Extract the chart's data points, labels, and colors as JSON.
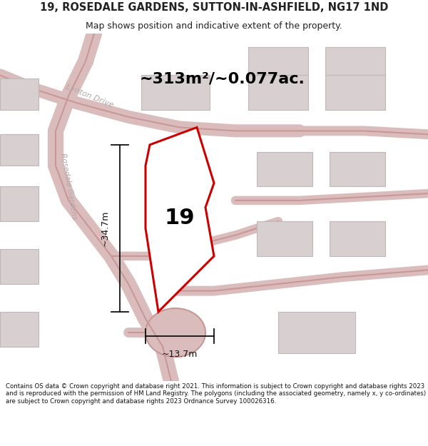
{
  "title_line1": "19, ROSEDALE GARDENS, SUTTON-IN-ASHFIELD, NG17 1ND",
  "title_line2": "Map shows position and indicative extent of the property.",
  "area_text": "~313m²/~0.077ac.",
  "label_19": "19",
  "dim_vertical": "~34.7m",
  "dim_horizontal": "~13.7m",
  "road_label1": "Lynton Drive",
  "road_label2": "Rosedale Gardens",
  "footer_text": "Contains OS data © Crown copyright and database right 2021. This information is subject to Crown copyright and database rights 2023 and is reproduced with the permission of HM Land Registry. The polygons (including the associated geometry, namely x, y co-ordinates) are subject to Crown copyright and database rights 2023 Ordnance Survey 100026316.",
  "map_bg": "#ede8e8",
  "road_fill": "#dbbcbc",
  "road_edge": "#c89898",
  "block_fill": "#d8d0d0",
  "block_edge": "#c0b8b8",
  "property_fill": "#ffffff",
  "property_edge": "#cc0000",
  "dim_color": "#111111",
  "text_color": "#222222",
  "road_text_color": "#b0a8a8",
  "footer_color": "#111111",
  "title_fontsize": 10.5,
  "subtitle_fontsize": 9,
  "area_fontsize": 16,
  "label_fontsize": 22,
  "dim_fontsize": 9,
  "road_fontsize": 8,
  "footer_fontsize": 6.2
}
